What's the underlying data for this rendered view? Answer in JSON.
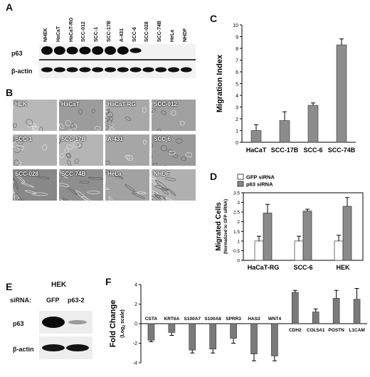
{
  "panels": {
    "A": "A",
    "B": "B",
    "C": "C",
    "D": "D",
    "E": "E",
    "F": "F"
  },
  "panelA": {
    "lanes": [
      "NHEK",
      "HaCaT",
      "HaCaT-RG",
      "SCC-012",
      "SCC-1",
      "SCC-17B",
      "A-431",
      "SCC-6",
      "SCC-028",
      "SCC-74B",
      "HeLa",
      "NHDF"
    ],
    "rows": [
      "p63",
      "β-actin"
    ]
  },
  "panelB": {
    "cells": [
      "HEK",
      "HaCaT",
      "HaCaT-RG",
      "SCC-012",
      "SCC-1",
      "SCC-17B",
      "A-431",
      "SCC-6",
      "SCC-028",
      "SCC-74B",
      "HeLa",
      "NHDF"
    ]
  },
  "panelE": {
    "title": "HEK",
    "sirna_label": "siRNA:",
    "lanes": [
      "GFP",
      "p63-2"
    ],
    "rows": [
      "p63",
      "β-actin"
    ]
  },
  "chart_data": [
    {
      "panel": "C",
      "type": "bar",
      "categories": [
        "HaCaT",
        "SCC-17B",
        "SCC-6",
        "SCC-74B"
      ],
      "values": [
        1.0,
        1.85,
        3.15,
        8.3
      ],
      "errors": [
        0.5,
        0.75,
        0.2,
        0.5
      ],
      "ylabel": "Migration Index",
      "ylim": [
        0,
        10
      ],
      "yticks": [
        0,
        1,
        2,
        3,
        4,
        5,
        6,
        7,
        8,
        9,
        10
      ]
    },
    {
      "panel": "D",
      "type": "bar",
      "categories": [
        "HaCaT-RG",
        "SCC-6",
        "HEK"
      ],
      "series": [
        {
          "name": "GFP siRNA",
          "values": [
            1.0,
            1.0,
            1.0
          ],
          "errors": [
            0.25,
            0.25,
            0.3
          ],
          "color": "#ffffff"
        },
        {
          "name": "p63 siRNA",
          "values": [
            2.45,
            2.55,
            2.8
          ],
          "errors": [
            0.45,
            0.1,
            0.45
          ],
          "color": "#8a8a8a"
        }
      ],
      "ylabel": "Migrated Cells",
      "ylabel2": "(Normalized to GFP siRNA)",
      "ylim": [
        0,
        3.5
      ],
      "yticks": [
        "0",
        "0.5",
        "1",
        "1.5",
        "2",
        "2.5",
        "3",
        "3.5"
      ],
      "legend": "top-left"
    },
    {
      "panel": "F",
      "type": "bar",
      "categories": [
        "CSTA",
        "KRT6A",
        "S100A7",
        "S100A8",
        "SPRR3",
        "HAS3",
        "WNT4",
        "CDH2",
        "COL5A1",
        "POSTN",
        "L1CAM"
      ],
      "values": [
        -1.7,
        -0.9,
        -2.7,
        -2.6,
        -1.5,
        -3.1,
        -3.3,
        3.2,
        1.2,
        2.6,
        2.5
      ],
      "errors": [
        0.15,
        0.3,
        0.3,
        0.4,
        0.5,
        0.7,
        0.5,
        0.2,
        0.3,
        0.8,
        1.1
      ],
      "ylabel": "Fold Change",
      "ylabel2": "(Log",
      "ylabel2_sub": "2",
      "ylabel2_tail": " scale)",
      "ylim": [
        -4,
        4
      ],
      "yticks": [
        "-4",
        "-2",
        "0",
        "2",
        "4"
      ]
    }
  ]
}
